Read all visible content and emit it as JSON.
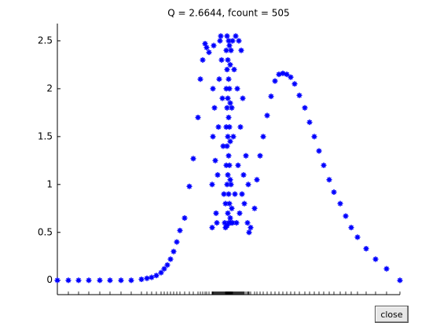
{
  "chart_data": {
    "type": "scatter",
    "title": "Q =   2.6644, fcount =  505",
    "color": "#0000ff",
    "x": [
      0,
      14,
      27,
      40,
      54,
      67,
      81,
      94,
      107,
      114,
      120,
      126,
      132,
      136,
      140,
      144,
      148,
      152,
      156,
      162,
      168,
      173,
      179,
      182,
      185,
      188,
      190,
      193,
      197,
      197,
      198,
      198,
      199,
      200,
      201,
      202,
      203,
      204,
      205,
      206,
      207,
      208,
      209,
      210,
      211,
      212,
      213,
      214,
      214,
      215,
      215,
      215,
      215,
      216,
      216,
      216,
      216,
      216,
      216,
      217,
      217,
      217,
      217,
      217,
      218,
      218,
      218,
      218,
      218,
      218,
      219,
      219,
      219,
      219,
      219,
      220,
      220,
      220,
      220,
      220,
      221,
      221,
      221,
      222,
      222,
      223,
      223,
      224,
      225,
      226,
      227,
      228,
      229,
      230,
      231,
      232,
      233,
      234,
      235,
      236,
      237,
      238,
      240,
      242,
      243,
      244,
      246,
      251,
      254,
      258,
      262,
      267,
      272,
      277,
      282,
      287,
      292,
      297,
      302,
      308,
      315,
      321,
      327,
      333,
      339,
      346,
      352,
      360,
      367,
      374,
      382,
      393,
      405,
      419,
      436
    ],
    "values": [
      0,
      0,
      0,
      0,
      0,
      0,
      0,
      0,
      0.01,
      0.02,
      0.03,
      0.05,
      0.08,
      0.12,
      0.16,
      0.22,
      0.3,
      0.4,
      0.52,
      0.65,
      0.98,
      1.27,
      1.7,
      2.1,
      2.3,
      2.47,
      2.43,
      2.38,
      0.55,
      1.0,
      1.5,
      2.0,
      2.45,
      1.8,
      1.25,
      0.7,
      0.6,
      1.1,
      1.6,
      2.1,
      2.5,
      2.55,
      2.3,
      1.9,
      1.4,
      0.9,
      0.6,
      0.55,
      0.8,
      1.2,
      1.6,
      2.0,
      2.4,
      0.57,
      1.0,
      1.4,
      1.8,
      2.2,
      2.55,
      0.7,
      1.1,
      1.5,
      1.9,
      2.3,
      0.6,
      0.9,
      1.3,
      1.7,
      2.1,
      2.5,
      0.8,
      1.2,
      1.6,
      2.0,
      2.45,
      0.65,
      1.05,
      1.45,
      1.85,
      2.25,
      0.6,
      1.0,
      2.4,
      0.75,
      1.8,
      0.6,
      2.5,
      1.5,
      2.2,
      0.9,
      2.55,
      0.6,
      2.0,
      1.2,
      2.5,
      0.7,
      1.6,
      2.4,
      0.9,
      1.9,
      1.1,
      0.8,
      1.3,
      0.6,
      1.0,
      0.5,
      0.55,
      0.75,
      1.05,
      1.3,
      1.5,
      1.72,
      1.92,
      2.08,
      2.15,
      2.16,
      2.15,
      2.12,
      2.05,
      1.93,
      1.8,
      1.65,
      1.5,
      1.35,
      1.2,
      1.05,
      0.92,
      0.8,
      0.67,
      0.55,
      0.45,
      0.33,
      0.22,
      0.12,
      0
    ],
    "xlim": [
      0,
      436
    ],
    "ylim": [
      -0.15,
      2.68
    ],
    "yticks": [
      0,
      0.5,
      1,
      1.5,
      2,
      2.5
    ]
  },
  "button": {
    "label": "close"
  }
}
